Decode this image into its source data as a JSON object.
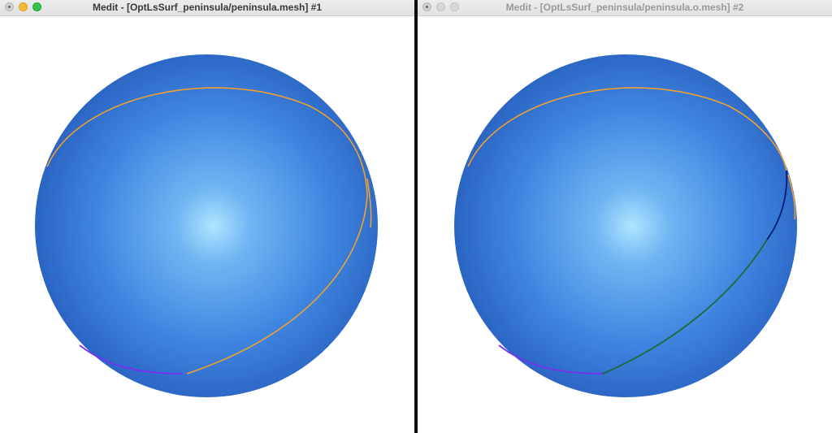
{
  "windows": [
    {
      "title": "Medit - [OptLsSurf_peninsula/peninsula.mesh] #1",
      "state": "active",
      "buttons": [
        "close",
        "minimize",
        "zoom"
      ]
    },
    {
      "title": "Medit - [OptLsSurf_peninsula/peninsula.o.mesh] #2",
      "state": "inactive",
      "buttons": [
        "close",
        "minimize",
        "zoom"
      ]
    }
  ],
  "colors": {
    "sphere_highlight": "#aee4ff",
    "sphere_mid": "#3f86e0",
    "sphere_edge": "#1a4aa0",
    "curve_orange": "#f0a030",
    "curve_purple": "#7a2ef0",
    "curve_navy": "#0a1a70",
    "curve_green": "#1f6a3a",
    "background": "#ffffff"
  }
}
